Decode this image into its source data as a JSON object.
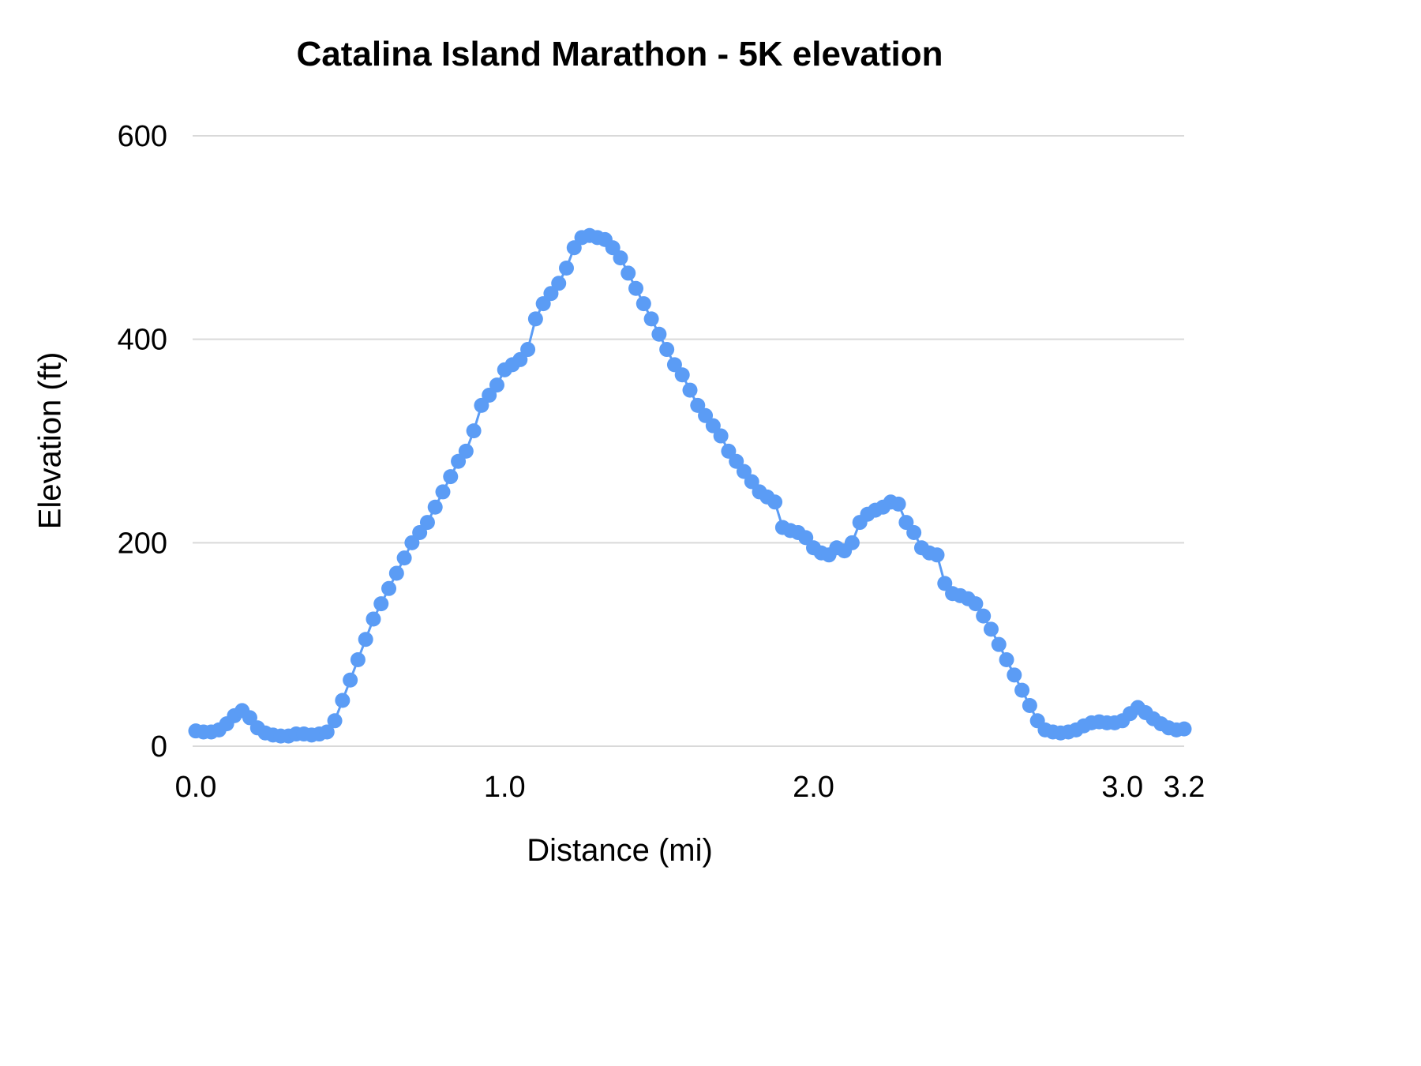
{
  "page": {
    "background": "#ffffff"
  },
  "chart_data": {
    "type": "scatter",
    "title": "Catalina Island Marathon - 5K elevation",
    "xlabel": "Distance (mi)",
    "ylabel": "Elevation (ft)",
    "xlim": [
      0,
      3.2
    ],
    "ylim": [
      0,
      600
    ],
    "grid": true,
    "legend": "none",
    "grid_color": "#d9d9d9",
    "text_color": "#000000",
    "xticks": [
      {
        "value": 0.0,
        "label": "0.0"
      },
      {
        "value": 1.0,
        "label": "1.0"
      },
      {
        "value": 2.0,
        "label": "2.0"
      },
      {
        "value": 3.0,
        "label": "3.0"
      },
      {
        "value": 3.2,
        "label": "3.2"
      }
    ],
    "yticks": [
      {
        "value": 0,
        "label": "0"
      },
      {
        "value": 200,
        "label": "200"
      },
      {
        "value": 400,
        "label": "400"
      },
      {
        "value": 600,
        "label": "600"
      }
    ],
    "series": [
      {
        "name": "Elevation",
        "color": "#5b9cf5",
        "marker": "circle",
        "points": [
          [
            0.0,
            15
          ],
          [
            0.025,
            14
          ],
          [
            0.05,
            14
          ],
          [
            0.075,
            16
          ],
          [
            0.1,
            22
          ],
          [
            0.125,
            30
          ],
          [
            0.15,
            35
          ],
          [
            0.175,
            28
          ],
          [
            0.2,
            18
          ],
          [
            0.225,
            13
          ],
          [
            0.25,
            11
          ],
          [
            0.275,
            10
          ],
          [
            0.3,
            10
          ],
          [
            0.325,
            12
          ],
          [
            0.35,
            12
          ],
          [
            0.375,
            11
          ],
          [
            0.4,
            12
          ],
          [
            0.425,
            14
          ],
          [
            0.45,
            25
          ],
          [
            0.475,
            45
          ],
          [
            0.5,
            65
          ],
          [
            0.525,
            85
          ],
          [
            0.55,
            105
          ],
          [
            0.575,
            125
          ],
          [
            0.6,
            140
          ],
          [
            0.625,
            155
          ],
          [
            0.65,
            170
          ],
          [
            0.675,
            185
          ],
          [
            0.7,
            200
          ],
          [
            0.725,
            210
          ],
          [
            0.75,
            220
          ],
          [
            0.775,
            235
          ],
          [
            0.8,
            250
          ],
          [
            0.825,
            265
          ],
          [
            0.85,
            280
          ],
          [
            0.875,
            290
          ],
          [
            0.9,
            310
          ],
          [
            0.925,
            335
          ],
          [
            0.95,
            345
          ],
          [
            0.975,
            355
          ],
          [
            1.0,
            370
          ],
          [
            1.025,
            375
          ],
          [
            1.05,
            380
          ],
          [
            1.075,
            390
          ],
          [
            1.1,
            420
          ],
          [
            1.125,
            435
          ],
          [
            1.15,
            445
          ],
          [
            1.175,
            455
          ],
          [
            1.2,
            470
          ],
          [
            1.225,
            490
          ],
          [
            1.25,
            500
          ],
          [
            1.275,
            502
          ],
          [
            1.3,
            500
          ],
          [
            1.325,
            498
          ],
          [
            1.35,
            490
          ],
          [
            1.375,
            480
          ],
          [
            1.4,
            465
          ],
          [
            1.425,
            450
          ],
          [
            1.45,
            435
          ],
          [
            1.475,
            420
          ],
          [
            1.5,
            405
          ],
          [
            1.525,
            390
          ],
          [
            1.55,
            375
          ],
          [
            1.575,
            365
          ],
          [
            1.6,
            350
          ],
          [
            1.625,
            335
          ],
          [
            1.65,
            325
          ],
          [
            1.675,
            315
          ],
          [
            1.7,
            305
          ],
          [
            1.725,
            290
          ],
          [
            1.75,
            280
          ],
          [
            1.775,
            270
          ],
          [
            1.8,
            260
          ],
          [
            1.825,
            250
          ],
          [
            1.85,
            245
          ],
          [
            1.875,
            240
          ],
          [
            1.9,
            215
          ],
          [
            1.925,
            212
          ],
          [
            1.95,
            210
          ],
          [
            1.975,
            205
          ],
          [
            2.0,
            195
          ],
          [
            2.025,
            190
          ],
          [
            2.05,
            188
          ],
          [
            2.075,
            195
          ],
          [
            2.1,
            192
          ],
          [
            2.125,
            200
          ],
          [
            2.15,
            220
          ],
          [
            2.175,
            228
          ],
          [
            2.2,
            232
          ],
          [
            2.225,
            235
          ],
          [
            2.25,
            240
          ],
          [
            2.275,
            238
          ],
          [
            2.3,
            220
          ],
          [
            2.325,
            210
          ],
          [
            2.35,
            195
          ],
          [
            2.375,
            190
          ],
          [
            2.4,
            188
          ],
          [
            2.425,
            160
          ],
          [
            2.45,
            150
          ],
          [
            2.475,
            148
          ],
          [
            2.5,
            145
          ],
          [
            2.525,
            140
          ],
          [
            2.55,
            128
          ],
          [
            2.575,
            115
          ],
          [
            2.6,
            100
          ],
          [
            2.625,
            85
          ],
          [
            2.65,
            70
          ],
          [
            2.675,
            55
          ],
          [
            2.7,
            40
          ],
          [
            2.725,
            25
          ],
          [
            2.75,
            16
          ],
          [
            2.775,
            14
          ],
          [
            2.8,
            13
          ],
          [
            2.825,
            14
          ],
          [
            2.85,
            16
          ],
          [
            2.875,
            20
          ],
          [
            2.9,
            23
          ],
          [
            2.925,
            24
          ],
          [
            2.95,
            23
          ],
          [
            2.975,
            23
          ],
          [
            3.0,
            25
          ],
          [
            3.025,
            32
          ],
          [
            3.05,
            38
          ],
          [
            3.075,
            33
          ],
          [
            3.1,
            27
          ],
          [
            3.125,
            22
          ],
          [
            3.15,
            18
          ],
          [
            3.175,
            16
          ],
          [
            3.2,
            17
          ]
        ]
      }
    ]
  }
}
